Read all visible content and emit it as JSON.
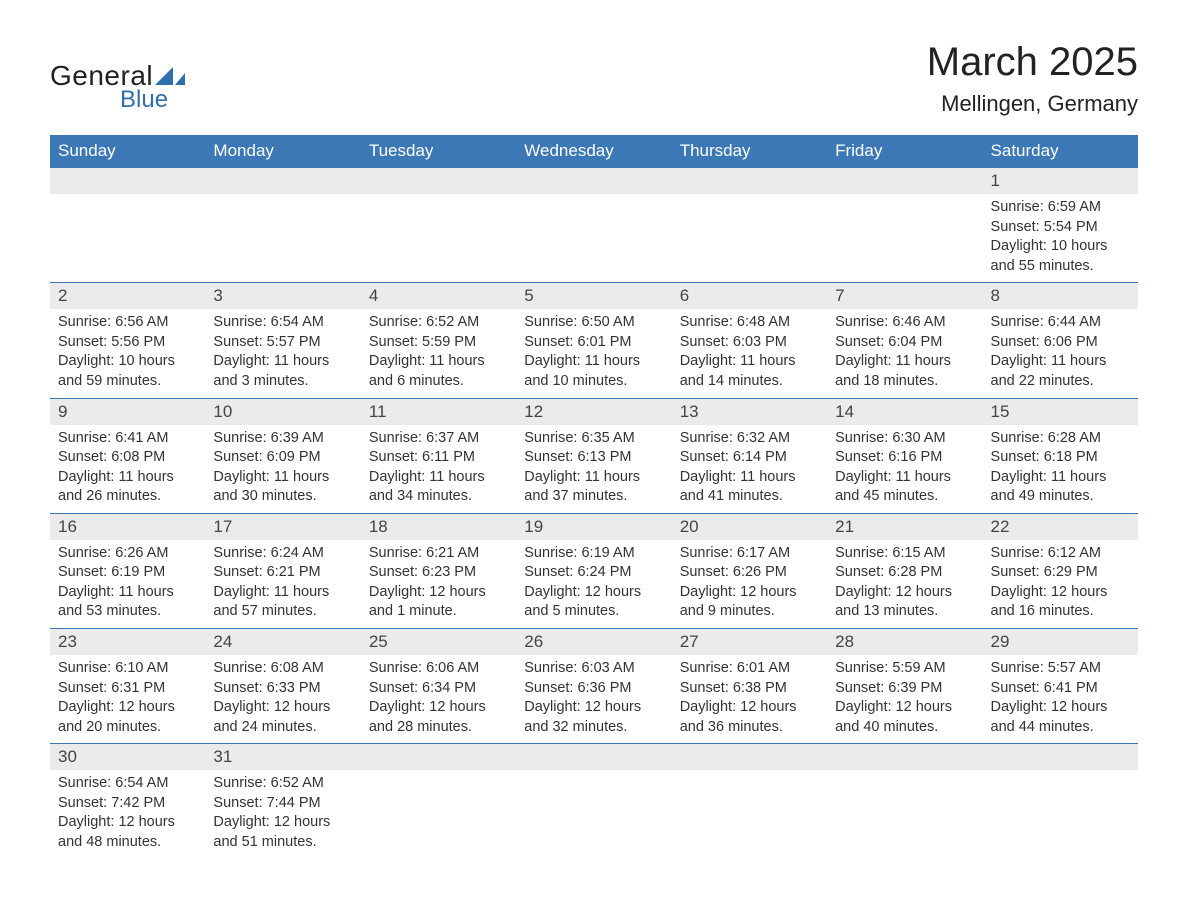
{
  "logo": {
    "text1": "General",
    "text2": "Blue",
    "shape_color": "#2f6fae"
  },
  "title": "March 2025",
  "location": "Mellingen, Germany",
  "colors": {
    "header_bg": "#3b78b5",
    "header_text": "#ffffff",
    "daynum_bg": "#ebebeb",
    "rule": "#3b78b5",
    "body_text": "#333333",
    "page_bg": "#ffffff"
  },
  "typography": {
    "title_fontsize": 40,
    "location_fontsize": 22,
    "dayhead_fontsize": 17,
    "body_fontsize": 14.5,
    "font_family": "Arial"
  },
  "day_headers": [
    "Sunday",
    "Monday",
    "Tuesday",
    "Wednesday",
    "Thursday",
    "Friday",
    "Saturday"
  ],
  "weeks": [
    [
      null,
      null,
      null,
      null,
      null,
      null,
      {
        "n": "1",
        "sunrise": "6:59 AM",
        "sunset": "5:54 PM",
        "daylight": "10 hours and 55 minutes."
      }
    ],
    [
      {
        "n": "2",
        "sunrise": "6:56 AM",
        "sunset": "5:56 PM",
        "daylight": "10 hours and 59 minutes."
      },
      {
        "n": "3",
        "sunrise": "6:54 AM",
        "sunset": "5:57 PM",
        "daylight": "11 hours and 3 minutes."
      },
      {
        "n": "4",
        "sunrise": "6:52 AM",
        "sunset": "5:59 PM",
        "daylight": "11 hours and 6 minutes."
      },
      {
        "n": "5",
        "sunrise": "6:50 AM",
        "sunset": "6:01 PM",
        "daylight": "11 hours and 10 minutes."
      },
      {
        "n": "6",
        "sunrise": "6:48 AM",
        "sunset": "6:03 PM",
        "daylight": "11 hours and 14 minutes."
      },
      {
        "n": "7",
        "sunrise": "6:46 AM",
        "sunset": "6:04 PM",
        "daylight": "11 hours and 18 minutes."
      },
      {
        "n": "8",
        "sunrise": "6:44 AM",
        "sunset": "6:06 PM",
        "daylight": "11 hours and 22 minutes."
      }
    ],
    [
      {
        "n": "9",
        "sunrise": "6:41 AM",
        "sunset": "6:08 PM",
        "daylight": "11 hours and 26 minutes."
      },
      {
        "n": "10",
        "sunrise": "6:39 AM",
        "sunset": "6:09 PM",
        "daylight": "11 hours and 30 minutes."
      },
      {
        "n": "11",
        "sunrise": "6:37 AM",
        "sunset": "6:11 PM",
        "daylight": "11 hours and 34 minutes."
      },
      {
        "n": "12",
        "sunrise": "6:35 AM",
        "sunset": "6:13 PM",
        "daylight": "11 hours and 37 minutes."
      },
      {
        "n": "13",
        "sunrise": "6:32 AM",
        "sunset": "6:14 PM",
        "daylight": "11 hours and 41 minutes."
      },
      {
        "n": "14",
        "sunrise": "6:30 AM",
        "sunset": "6:16 PM",
        "daylight": "11 hours and 45 minutes."
      },
      {
        "n": "15",
        "sunrise": "6:28 AM",
        "sunset": "6:18 PM",
        "daylight": "11 hours and 49 minutes."
      }
    ],
    [
      {
        "n": "16",
        "sunrise": "6:26 AM",
        "sunset": "6:19 PM",
        "daylight": "11 hours and 53 minutes."
      },
      {
        "n": "17",
        "sunrise": "6:24 AM",
        "sunset": "6:21 PM",
        "daylight": "11 hours and 57 minutes."
      },
      {
        "n": "18",
        "sunrise": "6:21 AM",
        "sunset": "6:23 PM",
        "daylight": "12 hours and 1 minute."
      },
      {
        "n": "19",
        "sunrise": "6:19 AM",
        "sunset": "6:24 PM",
        "daylight": "12 hours and 5 minutes."
      },
      {
        "n": "20",
        "sunrise": "6:17 AM",
        "sunset": "6:26 PM",
        "daylight": "12 hours and 9 minutes."
      },
      {
        "n": "21",
        "sunrise": "6:15 AM",
        "sunset": "6:28 PM",
        "daylight": "12 hours and 13 minutes."
      },
      {
        "n": "22",
        "sunrise": "6:12 AM",
        "sunset": "6:29 PM",
        "daylight": "12 hours and 16 minutes."
      }
    ],
    [
      {
        "n": "23",
        "sunrise": "6:10 AM",
        "sunset": "6:31 PM",
        "daylight": "12 hours and 20 minutes."
      },
      {
        "n": "24",
        "sunrise": "6:08 AM",
        "sunset": "6:33 PM",
        "daylight": "12 hours and 24 minutes."
      },
      {
        "n": "25",
        "sunrise": "6:06 AM",
        "sunset": "6:34 PM",
        "daylight": "12 hours and 28 minutes."
      },
      {
        "n": "26",
        "sunrise": "6:03 AM",
        "sunset": "6:36 PM",
        "daylight": "12 hours and 32 minutes."
      },
      {
        "n": "27",
        "sunrise": "6:01 AM",
        "sunset": "6:38 PM",
        "daylight": "12 hours and 36 minutes."
      },
      {
        "n": "28",
        "sunrise": "5:59 AM",
        "sunset": "6:39 PM",
        "daylight": "12 hours and 40 minutes."
      },
      {
        "n": "29",
        "sunrise": "5:57 AM",
        "sunset": "6:41 PM",
        "daylight": "12 hours and 44 minutes."
      }
    ],
    [
      {
        "n": "30",
        "sunrise": "6:54 AM",
        "sunset": "7:42 PM",
        "daylight": "12 hours and 48 minutes."
      },
      {
        "n": "31",
        "sunrise": "6:52 AM",
        "sunset": "7:44 PM",
        "daylight": "12 hours and 51 minutes."
      },
      null,
      null,
      null,
      null,
      null
    ]
  ],
  "labels": {
    "sunrise": "Sunrise:",
    "sunset": "Sunset:",
    "daylight": "Daylight:"
  }
}
